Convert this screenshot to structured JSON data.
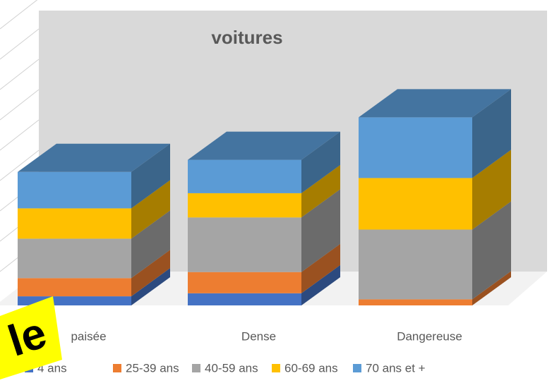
{
  "chart_data": {
    "type": "bar3d_stacked",
    "title": "voitures",
    "categories": [
      "paisée",
      "Dense",
      "Dangereuse"
    ],
    "series": [
      {
        "name": "4 ans",
        "color": "#4472c4",
        "values": [
          3,
          4,
          0
        ]
      },
      {
        "name": "25-39 ans",
        "color": "#ed7d31",
        "values": [
          6,
          7,
          2
        ]
      },
      {
        "name": "40-59 ans",
        "color": "#a5a5a5",
        "values": [
          13,
          18,
          23
        ]
      },
      {
        "name": "60-69 ans",
        "color": "#ffc000",
        "values": [
          10,
          8,
          17
        ]
      },
      {
        "name": "70 ans et +",
        "color": "#5b9bd5",
        "values": [
          12,
          11,
          20
        ]
      }
    ],
    "ylim": [
      0,
      100
    ],
    "grid": true
  },
  "sticker_text": "le"
}
